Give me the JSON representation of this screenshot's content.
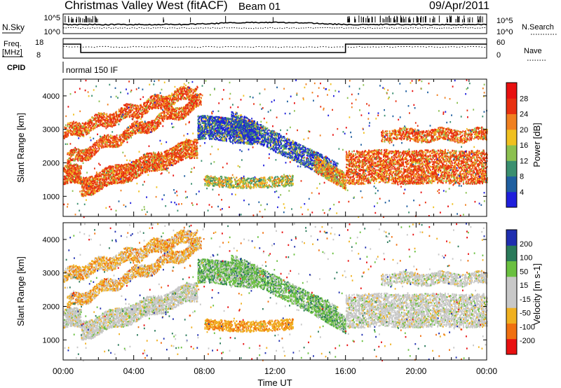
{
  "header": {
    "station": "Christmas Valley West (fitACF)",
    "beam": "Beam 01",
    "date": "09/Apr/2011"
  },
  "noise_panel": {
    "left_label": "N.Sky",
    "right_label": "N.Search",
    "left_ticks": [
      "10^5",
      "10^0"
    ],
    "right_ticks": [
      "10^5",
      "10^0"
    ]
  },
  "freq_panel": {
    "left_label": "Freq.",
    "left_unit": "[MHz]",
    "right_label": "Nave",
    "left_ticks": [
      "18",
      "8"
    ],
    "right_ticks": [
      "60",
      "0"
    ]
  },
  "cpid_panel": {
    "label": "CPID",
    "mode": "normal 150 IF"
  },
  "chart_data": [
    {
      "type": "heatmap",
      "title": "",
      "ylabel": "Slant Range [km]",
      "yticks": [
        "1000",
        "2000",
        "3000",
        "4000"
      ],
      "xlim": [
        "00:00",
        "24:00"
      ],
      "colorbar": {
        "label": "Power [dB]",
        "ticks": [
          "4",
          "8",
          "12",
          "16",
          "20",
          "24",
          "28"
        ],
        "colors": [
          "#1f1fdc",
          "#1f5fa0",
          "#3a8f6f",
          "#8cc050",
          "#f0c020",
          "#f08020",
          "#e83010",
          "#e81010"
        ]
      },
      "features": [
        {
          "start_hour": 0.0,
          "end_hour": 8.0,
          "range_start_km": 1500,
          "range_end_km": 4300,
          "description_level": "high"
        },
        {
          "start_hour": 8.0,
          "end_hour": 15.9,
          "range_start_km": 1200,
          "range_end_km": 3400,
          "description_level": "low"
        },
        {
          "start_hour": 16.0,
          "end_hour": 24.0,
          "range_start_km": 1300,
          "range_end_km": 2400,
          "description_level": "high"
        }
      ]
    },
    {
      "type": "heatmap",
      "title": "",
      "ylabel": "Slant Range [km]",
      "yticks": [
        "1000",
        "2000",
        "3000",
        "4000"
      ],
      "xlabel": "Time UT",
      "xticks": [
        "00:00",
        "04:00",
        "08:00",
        "12:00",
        "16:00",
        "20:00",
        "00:00"
      ],
      "colorbar": {
        "label": "Velocity [m s-1]",
        "ticks": [
          "200",
          "100",
          "50",
          "15",
          "-15",
          "-50",
          "-100",
          "-200"
        ],
        "colors": [
          "#1f2fb0",
          "#2a7a5a",
          "#6ac040",
          "#c8c8c8",
          "#c8c8c8",
          "#f0b020",
          "#f07010",
          "#e81010"
        ]
      }
    }
  ]
}
